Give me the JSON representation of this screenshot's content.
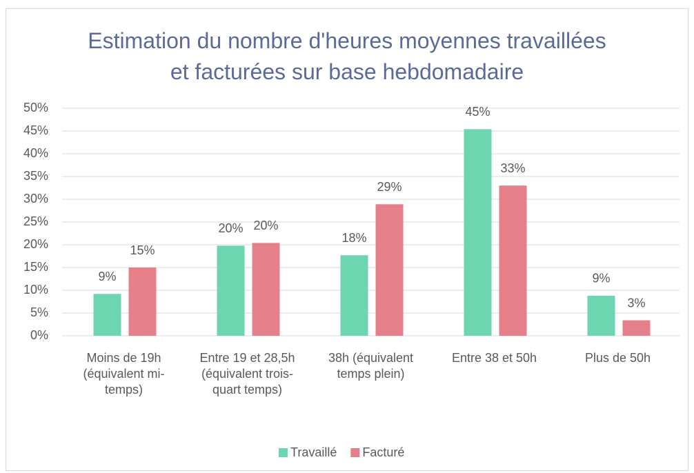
{
  "chart_data": {
    "type": "bar",
    "title": "Estimation du nombre d'heures moyennes travaillées et facturées sur base hebdomadaire",
    "categories": [
      "Moins de 19h (équivalent mi-temps)",
      "Entre 19 et 28,5h (équivalent trois-quart temps)",
      "38h (équivalent temps plein)",
      "Entre 38 et 50h",
      "Plus de 50h"
    ],
    "series": [
      {
        "name": "Travaillé",
        "color": "#6dd6b1",
        "values": [
          9.2,
          19.8,
          17.7,
          45.4,
          8.8
        ],
        "value_labels": [
          "9%",
          "20%",
          "18%",
          "45%",
          "9%"
        ]
      },
      {
        "name": "Facturé",
        "color": "#e5808b",
        "values": [
          15.0,
          20.4,
          28.9,
          33.0,
          3.4
        ],
        "value_labels": [
          "15%",
          "20%",
          "29%",
          "33%",
          "3%"
        ]
      }
    ],
    "ylim": [
      0,
      50
    ],
    "yticks": [
      {
        "value": 0,
        "label": "0%"
      },
      {
        "value": 5,
        "label": "5%"
      },
      {
        "value": 10,
        "label": "10%"
      },
      {
        "value": 15,
        "label": "15%"
      },
      {
        "value": 20,
        "label": "20%"
      },
      {
        "value": 25,
        "label": "25%"
      },
      {
        "value": 30,
        "label": "30%"
      },
      {
        "value": 35,
        "label": "35%"
      },
      {
        "value": 40,
        "label": "40%"
      },
      {
        "value": 45,
        "label": "45%"
      },
      {
        "value": 50,
        "label": "50%"
      }
    ],
    "grid": true,
    "legend": "bottom"
  }
}
